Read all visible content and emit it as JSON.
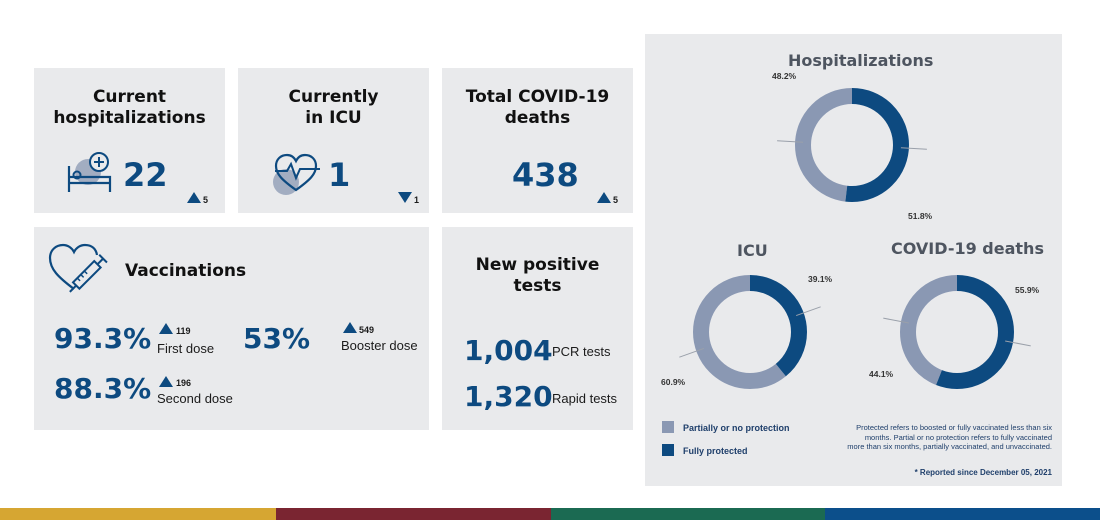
{
  "cards": {
    "hospitalizations": {
      "title_line1": "Current",
      "title_line2": "hospitalizations",
      "value": "22",
      "change": "5",
      "trend": "up",
      "icon": "hospital-bed-icon"
    },
    "icu": {
      "title_line1": "Currently",
      "title_line2": "in ICU",
      "value": "1",
      "change": "1",
      "trend": "down",
      "icon": "heart-monitor-icon"
    },
    "deaths": {
      "title_line1": "Total COVID-19",
      "title_line2": "deaths",
      "value": "438",
      "change": "5",
      "trend": "up"
    }
  },
  "vaccinations": {
    "title": "Vaccinations",
    "icon": "heart-syringe-icon",
    "first_dose": {
      "value": "93.3%",
      "change": "119",
      "label": "First dose"
    },
    "second_dose": {
      "value": "88.3%",
      "change": "196",
      "label": "Second dose"
    },
    "booster_dose": {
      "value": "53%",
      "change": "549",
      "label": "Booster dose"
    }
  },
  "tests": {
    "title_line1": "New positive",
    "title_line2": "tests",
    "pcr": {
      "value": "1,004",
      "label": "PCR tests"
    },
    "rapid": {
      "value": "1,320",
      "label": "Rapid tests"
    }
  },
  "donuts": {
    "hospitalizations": {
      "title": "Hospitalizations",
      "partial": "48.2%",
      "full": "51.8%"
    },
    "icu": {
      "title": "ICU",
      "full": "39.1%",
      "partial": "60.9%"
    },
    "deaths": {
      "title": "COVID-19 deaths",
      "full": "55.9%",
      "partial": "44.1%"
    }
  },
  "chart_data": [
    {
      "type": "pie",
      "title": "Hospitalizations",
      "categories": [
        "Partially or no protection",
        "Fully protected"
      ],
      "values": [
        48.2,
        51.8
      ]
    },
    {
      "type": "pie",
      "title": "ICU",
      "categories": [
        "Partially or no protection",
        "Fully protected"
      ],
      "values": [
        60.9,
        39.1
      ]
    },
    {
      "type": "pie",
      "title": "COVID-19 deaths",
      "categories": [
        "Partially or no protection",
        "Fully protected"
      ],
      "values": [
        44.1,
        55.9
      ]
    }
  ],
  "legend": {
    "partial": "Partially or no protection",
    "full": "Fully protected"
  },
  "note": {
    "line1": "Protected refers to boosted or fully vaccinated less than six",
    "line2": "months. Partial or no protection refers to fully vaccinated",
    "line3": "more than six months, partially vaccinated, and unvaccinated."
  },
  "reported": "* Reported since December 05, 2021",
  "colors": {
    "full": "#0d4a80",
    "partial": "#8a98b3",
    "card_bg": "#e9eaec",
    "stripe": [
      "#d6a632",
      "#7a2531",
      "#1b6a52",
      "#0c4f8b"
    ]
  }
}
